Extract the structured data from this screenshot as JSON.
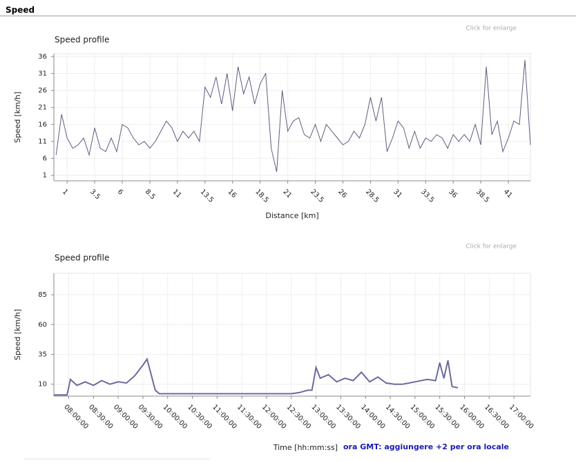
{
  "header": "Speed",
  "chart_data": [
    {
      "type": "line",
      "title": "Speed profile",
      "link_text": "Click for enlarge",
      "x_label": "Distance [km]",
      "y_label": "Speed [km/h]",
      "color": "#5c5c7e",
      "grid": true,
      "x": [
        0,
        0.5,
        1,
        1.5,
        2,
        2.5,
        3,
        3.5,
        4,
        4.5,
        5,
        5.5,
        6,
        6.5,
        7,
        7.5,
        8,
        8.5,
        9,
        9.5,
        10,
        10.5,
        11,
        11.5,
        12,
        12.5,
        13,
        13.5,
        14,
        14.5,
        15,
        15.5,
        16,
        16.5,
        17,
        17.5,
        18,
        18.5,
        19,
        19.5,
        20,
        20.5,
        21,
        21.5,
        22,
        22.5,
        23,
        23.5,
        24,
        24.5,
        25,
        25.5,
        26,
        26.5,
        27,
        27.5,
        28,
        28.5,
        29,
        29.5,
        30,
        30.5,
        31,
        31.5,
        32,
        32.5,
        33,
        33.5,
        34,
        34.5,
        35,
        35.5,
        36,
        36.5,
        37,
        37.5,
        38,
        38.5,
        39,
        39.5,
        40,
        40.5,
        41,
        41.5,
        42,
        42.5,
        43
      ],
      "values": [
        7,
        19,
        12,
        9,
        10,
        12,
        7,
        15,
        9,
        8,
        12,
        8,
        16,
        15,
        12,
        10,
        11,
        9,
        11,
        14,
        17,
        15,
        11,
        14,
        12,
        14,
        11,
        27,
        24,
        30,
        22,
        31,
        20,
        33,
        25,
        30,
        22,
        28,
        31,
        9,
        2,
        26,
        14,
        17,
        18,
        13,
        12,
        16,
        11,
        16,
        14,
        12,
        10,
        11,
        14,
        12,
        16,
        24,
        17,
        24,
        8,
        12,
        17,
        15,
        9,
        14,
        9,
        12,
        11,
        13,
        12,
        9,
        13,
        11,
        13,
        11,
        16,
        10,
        33,
        13,
        17,
        8,
        12,
        17,
        16,
        35,
        10
      ],
      "xlim": [
        -0.2,
        43
      ],
      "ylim": [
        -0.6,
        36.8
      ],
      "xticks": [
        1,
        3.5,
        6,
        8.5,
        11,
        13.5,
        16,
        18.5,
        21,
        23.5,
        26,
        28.5,
        31,
        33.5,
        36,
        38.5,
        41
      ],
      "yticks": [
        1,
        6,
        11,
        16,
        21,
        26,
        31,
        36
      ]
    },
    {
      "type": "line",
      "title": "Speed profile",
      "link_text": "Click for enlarge",
      "x_label": "Time  [hh:mm:ss]",
      "y_label": "Speed [km/h]",
      "note": "ora GMT: aggiungere +2 per ora locale",
      "color": "#6a6a9c",
      "grid": true,
      "x": [
        "07:42:00",
        "07:58:00",
        "08:02:00",
        "08:10:00",
        "08:20:00",
        "08:30:00",
        "08:40:00",
        "08:50:00",
        "09:00:00",
        "09:10:00",
        "09:20:00",
        "09:30:00",
        "09:35:00",
        "09:40:00",
        "09:45:00",
        "09:50:00",
        "10:30:00",
        "11:30:00",
        "12:30:00",
        "12:40:00",
        "12:50:00",
        "12:55:00",
        "13:00:00",
        "13:05:00",
        "13:15:00",
        "13:25:00",
        "13:35:00",
        "13:45:00",
        "13:55:00",
        "14:05:00",
        "14:15:00",
        "14:25:00",
        "14:35:00",
        "14:45:00",
        "15:00:00",
        "15:15:00",
        "15:25:00",
        "15:30:00",
        "15:35:00",
        "15:40:00",
        "15:45:00",
        "15:52:00"
      ],
      "values": [
        1,
        1,
        14,
        9,
        12,
        9,
        13,
        10,
        12,
        11,
        17,
        26,
        31,
        18,
        5,
        2,
        2,
        2,
        2,
        3,
        5,
        5,
        24,
        15,
        18,
        12,
        15,
        13,
        20,
        12,
        16,
        11,
        10,
        10,
        12,
        14,
        13,
        28,
        15,
        30,
        8,
        7
      ],
      "xlim": [
        "07:42:00",
        "17:20:00"
      ],
      "ylim": [
        0,
        103
      ],
      "xticks": [
        "08:00:00",
        "08:30:00",
        "09:00:00",
        "09:30:00",
        "10:00:00",
        "10:30:00",
        "11:00:00",
        "11:30:00",
        "12:00:00",
        "12:30:00",
        "13:00:00",
        "13:30:00",
        "14:00:00",
        "14:30:00",
        "15:00:00",
        "15:30:00",
        "16:00:00",
        "16:30:00",
        "17:00:00"
      ],
      "yticks": [
        10,
        35,
        60,
        85
      ]
    }
  ]
}
